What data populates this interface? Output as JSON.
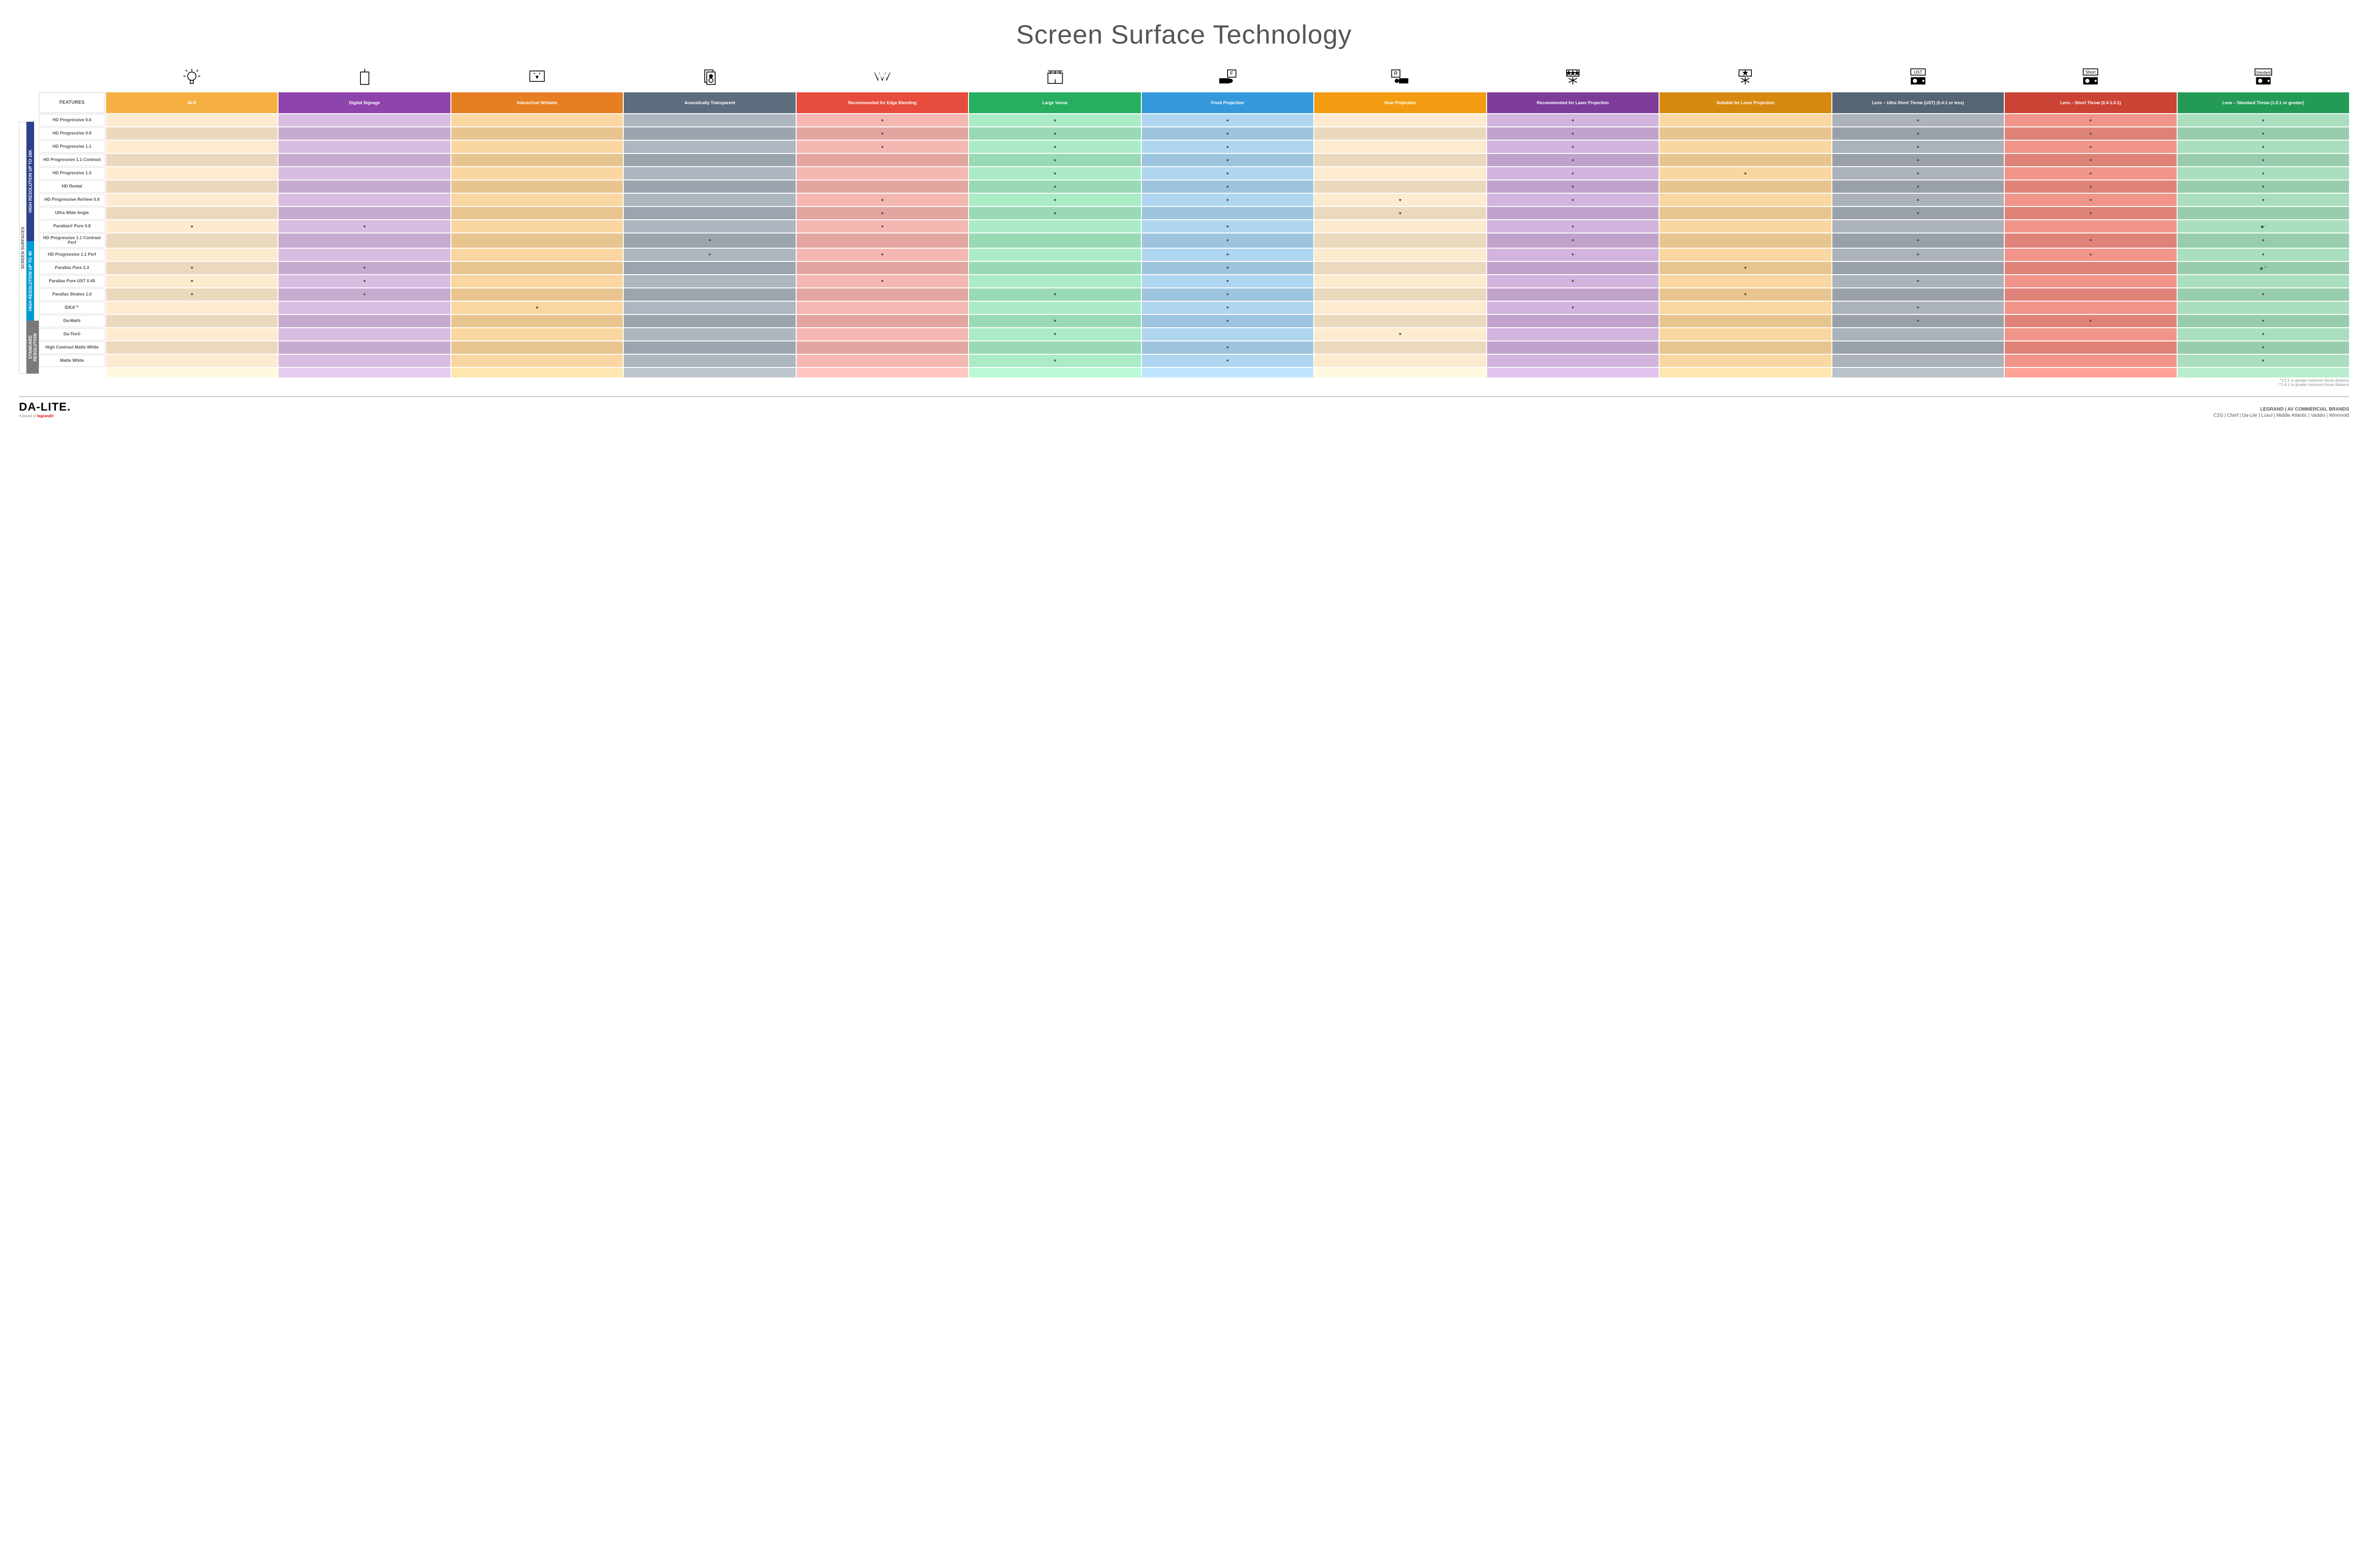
{
  "title": "Screen Surface Technology",
  "features_label": "FEATURES",
  "side_outer": "SCREEN SURFACES",
  "groups": [
    {
      "label": "HIGH RESOLUTION UP TO 16K",
      "color": "#2d3f8f",
      "rows": 9
    },
    {
      "label": "HIGH RESOLUTION UP TO 4K",
      "color": "#0099d8",
      "rows": 6
    },
    {
      "label": "STANDARD RESOLUTION",
      "color": "#7a7a7a",
      "rows": 4
    }
  ],
  "columns": [
    {
      "label": "ALR",
      "base": "#f5b041",
      "alt": "#fdebd0"
    },
    {
      "label": "Digital Signage",
      "base": "#8e44ad",
      "alt": "#d7bde2"
    },
    {
      "label": "Interactive/ Writable",
      "base": "#e67e22",
      "alt": "#fad7a0"
    },
    {
      "label": "Acoustically Transparent",
      "base": "#5d6d7e",
      "alt": "#aeb6bf"
    },
    {
      "label": "Recommended for Edge Blending",
      "base": "#e74c3c",
      "alt": "#f5b7b1"
    },
    {
      "label": "Large Venue",
      "base": "#27ae60",
      "alt": "#abebc6"
    },
    {
      "label": "Front Projection",
      "base": "#3498db",
      "alt": "#aed6f1"
    },
    {
      "label": "Rear Projection",
      "base": "#f39c12",
      "alt": "#fdebd0"
    },
    {
      "label": "Recommended for Laser Projection",
      "base": "#7d3c98",
      "alt": "#d2b4de"
    },
    {
      "label": "Suitable for Laser Projection",
      "base": "#d68910",
      "alt": "#fad7a0"
    },
    {
      "label": "Lens – Ultra Short Throw (UST) (0.4:1 or less)",
      "base": "#566573",
      "alt": "#abb2b9"
    },
    {
      "label": "Lens – Short Throw (0.4-1.0:1)",
      "base": "#cb4335",
      "alt": "#f1948a"
    },
    {
      "label": "Lens – Standard Throw (1.0:1 or greater)",
      "base": "#239b56",
      "alt": "#a9dfbf"
    }
  ],
  "rows": [
    {
      "label": "HD Progressive 0.6",
      "dots": [
        0,
        0,
        0,
        0,
        1,
        1,
        1,
        0,
        1,
        0,
        1,
        1,
        1
      ]
    },
    {
      "label": "HD Progressive 0.9",
      "dots": [
        0,
        0,
        0,
        0,
        1,
        1,
        1,
        0,
        1,
        0,
        1,
        1,
        1
      ]
    },
    {
      "label": "HD Progressive 1.1",
      "dots": [
        0,
        0,
        0,
        0,
        1,
        1,
        1,
        0,
        1,
        0,
        1,
        1,
        1
      ]
    },
    {
      "label": "HD Progressive 1.1 Contrast",
      "dots": [
        0,
        0,
        0,
        0,
        0,
        1,
        1,
        0,
        1,
        0,
        1,
        1,
        1
      ]
    },
    {
      "label": "HD Progressive 1.3",
      "dots": [
        0,
        0,
        0,
        0,
        0,
        1,
        1,
        0,
        1,
        1,
        1,
        1,
        1
      ]
    },
    {
      "label": "HD Rental",
      "dots": [
        0,
        0,
        0,
        0,
        0,
        1,
        1,
        0,
        1,
        0,
        1,
        1,
        1
      ]
    },
    {
      "label": "HD Progressive ReView 0.9",
      "dots": [
        0,
        0,
        0,
        0,
        1,
        1,
        1,
        1,
        1,
        0,
        1,
        1,
        1
      ]
    },
    {
      "label": "Ultra Wide Angle",
      "dots": [
        0,
        0,
        0,
        0,
        1,
        1,
        0,
        1,
        0,
        0,
        1,
        1,
        0
      ]
    },
    {
      "label": "Parallax® Pure 0.8",
      "dots": [
        1,
        1,
        0,
        0,
        1,
        0,
        1,
        0,
        1,
        0,
        0,
        0,
        1
      ],
      "suffix": "*"
    },
    {
      "label": "HD Progressive 1.1 Contrast Perf",
      "dots": [
        0,
        0,
        0,
        1,
        0,
        0,
        1,
        0,
        1,
        0,
        1,
        1,
        1
      ]
    },
    {
      "label": "HD Progressive 1.1 Perf",
      "dots": [
        0,
        0,
        0,
        1,
        1,
        0,
        1,
        0,
        1,
        0,
        1,
        1,
        1
      ]
    },
    {
      "label": "Parallax Pure 2.3",
      "dots": [
        1,
        1,
        0,
        0,
        0,
        0,
        1,
        0,
        0,
        1,
        0,
        0,
        1
      ],
      "suffix": "**"
    },
    {
      "label": "Parallax Pure UST 0.45",
      "dots": [
        1,
        1,
        0,
        0,
        1,
        0,
        1,
        0,
        1,
        0,
        1,
        0,
        0
      ]
    },
    {
      "label": "Parallax Stratos 1.0",
      "dots": [
        1,
        1,
        0,
        0,
        0,
        1,
        1,
        0,
        0,
        1,
        0,
        0,
        1
      ]
    },
    {
      "label": "IDEA™",
      "dots": [
        0,
        0,
        1,
        0,
        0,
        0,
        1,
        0,
        1,
        0,
        1,
        0,
        0
      ]
    },
    {
      "label": "Da-Mat®",
      "dots": [
        0,
        0,
        0,
        0,
        0,
        1,
        1,
        0,
        0,
        0,
        1,
        1,
        1
      ]
    },
    {
      "label": "Da-Tex®",
      "dots": [
        0,
        0,
        0,
        0,
        0,
        1,
        0,
        1,
        0,
        0,
        0,
        0,
        1
      ]
    },
    {
      "label": "High Contrast Matte White",
      "dots": [
        0,
        0,
        0,
        0,
        0,
        0,
        1,
        0,
        0,
        0,
        0,
        0,
        1
      ]
    },
    {
      "label": "Matte White",
      "dots": [
        0,
        0,
        0,
        0,
        0,
        1,
        1,
        0,
        0,
        0,
        0,
        0,
        1
      ]
    }
  ],
  "footnotes": [
    "*1.5:1 or greater minimum throw distance",
    "**1.8:1 or greater minimum throw distance"
  ],
  "logo": {
    "main": "DA-LITE.",
    "sub_prefix": "A brand of ",
    "sub_brand": "legrand®"
  },
  "brands": {
    "top": "LEGRAND | AV COMMERCIAL BRANDS",
    "list": "C2G  |  Chief  |  Da-Lite  |  Luxul  |  Middle Atlantic  |  Vaddio  |  Wiremold"
  }
}
